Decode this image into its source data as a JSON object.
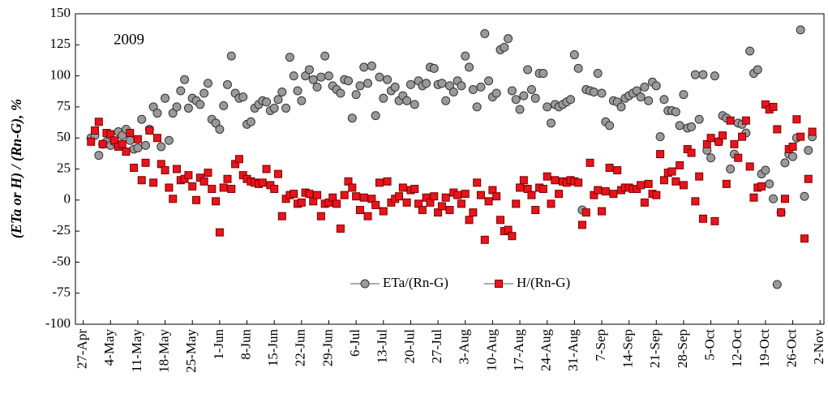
{
  "chart_data": {
    "type": "scatter",
    "annotation": "2009",
    "y_label": "(ETa or H) / (Rn-G), %",
    "xlim": [
      -2,
      190
    ],
    "ylim": [
      -100,
      150
    ],
    "yticks": [
      -100,
      -75,
      -50,
      -25,
      0,
      25,
      50,
      75,
      100,
      125,
      150
    ],
    "xticks": [
      {
        "value": 0,
        "label": "27-Apr"
      },
      {
        "value": 7,
        "label": "4-May"
      },
      {
        "value": 14,
        "label": "11-May"
      },
      {
        "value": 21,
        "label": "18-May"
      },
      {
        "value": 28,
        "label": "25-May"
      },
      {
        "value": 35,
        "label": "1-Jun"
      },
      {
        "value": 42,
        "label": "8-Jun"
      },
      {
        "value": 49,
        "label": "15-Jun"
      },
      {
        "value": 56,
        "label": "22-Jun"
      },
      {
        "value": 63,
        "label": "29-Jun"
      },
      {
        "value": 70,
        "label": "6-Jul"
      },
      {
        "value": 77,
        "label": "13-Jul"
      },
      {
        "value": 84,
        "label": "20-Jul"
      },
      {
        "value": 91,
        "label": "27-Jul"
      },
      {
        "value": 98,
        "label": "3-Aug"
      },
      {
        "value": 105,
        "label": "10-Aug"
      },
      {
        "value": 112,
        "label": "17-Aug"
      },
      {
        "value": 119,
        "label": "24-Aug"
      },
      {
        "value": 126,
        "label": "31-Aug"
      },
      {
        "value": 133,
        "label": "7-Sep"
      },
      {
        "value": 140,
        "label": "14-Sep"
      },
      {
        "value": 147,
        "label": "21-Sep"
      },
      {
        "value": 154,
        "label": "28-Sep"
      },
      {
        "value": 161,
        "label": "5-Oct"
      },
      {
        "value": 168,
        "label": "12-Oct"
      },
      {
        "value": 175,
        "label": "19-Oct"
      },
      {
        "value": 182,
        "label": "26-Oct"
      },
      {
        "value": 189,
        "label": "2-Nov"
      }
    ],
    "x": [
      2,
      3,
      4,
      5,
      6,
      7,
      8,
      9,
      10,
      11,
      12,
      13,
      14,
      15,
      16,
      17,
      18,
      19,
      20,
      21,
      22,
      23,
      24,
      25,
      26,
      27,
      28,
      29,
      30,
      31,
      32,
      33,
      34,
      35,
      36,
      37,
      38,
      39,
      40,
      41,
      42,
      43,
      44,
      45,
      46,
      47,
      48,
      49,
      50,
      51,
      52,
      53,
      54,
      55,
      56,
      57,
      58,
      59,
      60,
      61,
      62,
      63,
      64,
      65,
      66,
      67,
      68,
      69,
      70,
      71,
      72,
      73,
      74,
      75,
      76,
      77,
      78,
      79,
      80,
      81,
      82,
      83,
      84,
      85,
      86,
      87,
      88,
      89,
      90,
      91,
      92,
      93,
      94,
      95,
      96,
      97,
      98,
      99,
      100,
      101,
      102,
      103,
      104,
      105,
      106,
      107,
      108,
      109,
      110,
      111,
      112,
      113,
      114,
      115,
      116,
      117,
      118,
      119,
      120,
      121,
      122,
      123,
      124,
      125,
      126,
      127,
      128,
      129,
      130,
      131,
      132,
      133,
      134,
      135,
      136,
      137,
      138,
      139,
      140,
      141,
      142,
      143,
      144,
      145,
      146,
      147,
      148,
      149,
      150,
      151,
      152,
      153,
      154,
      155,
      156,
      157,
      158,
      159,
      160,
      161,
      162,
      163,
      164,
      165,
      166,
      167,
      168,
      169,
      170,
      171,
      172,
      173,
      174,
      175,
      176,
      177,
      178,
      179,
      180,
      181,
      182,
      183,
      184,
      185,
      186,
      187
    ],
    "series": [
      {
        "name": "ETa/(Rn-G)",
        "color": "#9a9a9a",
        "marker": "circle",
        "values": [
          50,
          52,
          36,
          45,
          47,
          44,
          47,
          55,
          52,
          57,
          48,
          41,
          42,
          65,
          44,
          57,
          75,
          70,
          43,
          82,
          48,
          70,
          75,
          88,
          97,
          74,
          82,
          80,
          77,
          86,
          94,
          65,
          62,
          57,
          76,
          93,
          116,
          86,
          82,
          83,
          61,
          63,
          74,
          77,
          80,
          79,
          72,
          74,
          81,
          87,
          74,
          115,
          100,
          88,
          80,
          100,
          105,
          97,
          91,
          99,
          116,
          100,
          92,
          89,
          86,
          97,
          96,
          66,
          85,
          92,
          107,
          94,
          108,
          68,
          99,
          82,
          97,
          88,
          91,
          80,
          84,
          80,
          93,
          77,
          96,
          92,
          94,
          107,
          106,
          93,
          94,
          80,
          92,
          87,
          96,
          92,
          116,
          107,
          89,
          75,
          91,
          134,
          96,
          83,
          86,
          121,
          123,
          130,
          88,
          81,
          73,
          84,
          105,
          89,
          82,
          102,
          102,
          75,
          62,
          77,
          75,
          77,
          79,
          81,
          117,
          106,
          -8,
          89,
          88,
          87,
          102,
          86,
          63,
          60,
          80,
          79,
          75,
          82,
          84,
          86,
          88,
          83,
          91,
          80,
          95,
          92,
          51,
          81,
          72,
          72,
          71,
          60,
          85,
          58,
          59,
          101,
          65,
          101,
          40,
          34,
          100,
          47,
          68,
          66,
          25,
          37,
          62,
          61,
          54,
          120,
          102,
          105,
          21,
          24,
          13,
          1,
          -68,
          -10,
          30,
          37,
          35,
          50,
          137,
          3,
          40,
          51
        ]
      },
      {
        "name": "H/(Rn-G)",
        "color": "#e8141b",
        "marker": "square",
        "values": [
          47,
          56,
          63,
          45,
          54,
          53,
          48,
          43,
          45,
          39,
          54,
          26,
          49,
          16,
          30,
          56,
          14,
          50,
          29,
          24,
          10,
          1,
          25,
          16,
          17,
          20,
          11,
          0,
          18,
          15,
          22,
          9,
          -1,
          -26,
          10,
          17,
          9,
          29,
          33,
          20,
          17,
          15,
          14,
          13,
          14,
          25,
          12,
          9,
          21,
          -13,
          1,
          4,
          5,
          -3,
          -2,
          6,
          5,
          -1,
          4,
          -13,
          -3,
          -2,
          2,
          -3,
          -23,
          4,
          15,
          10,
          3,
          -8,
          2,
          -13,
          1,
          -4,
          14,
          -9,
          15,
          -2,
          1,
          3,
          10,
          -2,
          8,
          9,
          -3,
          -8,
          2,
          -2,
          3,
          -10,
          -5,
          2,
          -8,
          6,
          4,
          -3,
          5,
          -16,
          -10,
          14,
          4,
          -32,
          -1,
          8,
          3,
          -16,
          -25,
          -24,
          -29,
          -3,
          10,
          16,
          9,
          4,
          -8,
          10,
          9,
          19,
          -3,
          16,
          5,
          15,
          14,
          16,
          15,
          14,
          -20,
          -10,
          30,
          4,
          8,
          -9,
          7,
          26,
          5,
          24,
          8,
          10,
          10,
          9,
          9,
          12,
          -2,
          13,
          5,
          4,
          37,
          16,
          22,
          23,
          15,
          28,
          12,
          41,
          38,
          -1,
          19,
          -15,
          45,
          50,
          -17,
          47,
          52,
          13,
          64,
          45,
          34,
          51,
          64,
          27,
          2,
          10,
          11,
          77,
          73,
          75,
          57,
          -10,
          1,
          41,
          43,
          65,
          51,
          -31,
          17,
          55
        ]
      }
    ]
  }
}
